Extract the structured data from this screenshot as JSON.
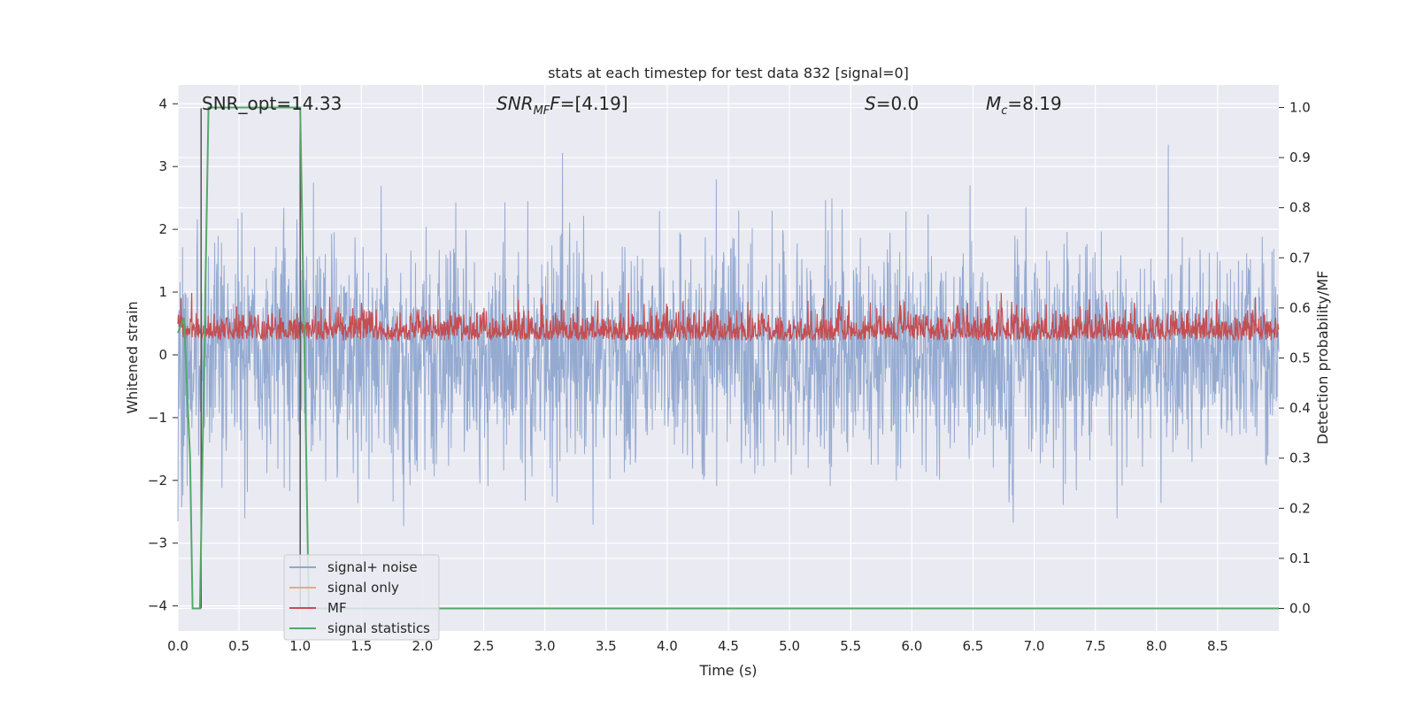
{
  "chart_data": {
    "type": "line",
    "title": "stats at each timestep for test data 832 [signal=0]",
    "xlabel": "Time (s)",
    "ylabel": "Whitened strain",
    "y2label": "Detection probability/MF",
    "xlim": [
      0.0,
      9.0
    ],
    "ylim": [
      -4.4,
      4.3
    ],
    "y2lim": [
      -0.045,
      1.045
    ],
    "xticks": [
      0.0,
      0.5,
      1.0,
      1.5,
      2.0,
      2.5,
      3.0,
      3.5,
      4.0,
      4.5,
      5.0,
      5.5,
      6.0,
      6.5,
      7.0,
      7.5,
      8.0,
      8.5
    ],
    "xtick_labels": [
      "0.0",
      "0.5",
      "1.0",
      "1.5",
      "2.0",
      "2.5",
      "3.0",
      "3.5",
      "4.0",
      "4.5",
      "5.0",
      "5.5",
      "6.0",
      "6.5",
      "7.0",
      "7.5",
      "8.0",
      "8.5"
    ],
    "yticks": [
      -4,
      -3,
      -2,
      -1,
      0,
      1,
      2,
      3,
      4
    ],
    "ytick_labels": [
      "−4",
      "−3",
      "−2",
      "−1",
      "0",
      "1",
      "2",
      "3",
      "4"
    ],
    "y2ticks": [
      0.0,
      0.1,
      0.2,
      0.3,
      0.4,
      0.5,
      0.6,
      0.7,
      0.8,
      0.9,
      1.0
    ],
    "y2tick_labels": [
      "0.0",
      "0.1",
      "0.2",
      "0.3",
      "0.4",
      "0.5",
      "0.6",
      "0.7",
      "0.8",
      "0.9",
      "1.0"
    ],
    "annotations": {
      "snr_opt": "SNR_opt=14.33",
      "snr_mf_main": "SNR",
      "snr_mf_sub": "MF",
      "snr_mf_rest": "=[4.19]",
      "s_main": "S",
      "s_rest": "=0.0",
      "mc_main": "M",
      "mc_sub": "c",
      "mc_rest": "=8.19"
    },
    "series": [
      {
        "name": "signal+ noise",
        "axis": "left",
        "color": "#8fa6cf",
        "envelope": {
          "typical_min": -1.6,
          "typical_max": 1.6,
          "extreme_min": -3.75,
          "extreme_max": 3.93
        }
      },
      {
        "name": "signal only",
        "axis": "left",
        "color": "#e8a88a",
        "values": []
      },
      {
        "name": "MF",
        "axis": "right",
        "color": "#c44e52",
        "envelope": {
          "min": 0.5,
          "max": 0.63,
          "peak": 0.63
        }
      },
      {
        "name": "signal statistics",
        "axis": "right",
        "color": "#55a868",
        "x": [
          0.0,
          0.05,
          0.1,
          0.12,
          0.18,
          0.25,
          0.3,
          0.8,
          1.0,
          1.05,
          1.07,
          9.0
        ],
        "y": [
          0.55,
          0.58,
          0.3,
          0.0,
          0.0,
          1.0,
          1.0,
          1.0,
          1.0,
          0.3,
          0.0,
          0.0
        ]
      }
    ],
    "vlines": [
      0.19,
      1.0
    ],
    "legend": {
      "placement": "lower-left",
      "entries": [
        "signal+ noise",
        "signal only",
        "MF",
        "signal statistics"
      ]
    }
  }
}
